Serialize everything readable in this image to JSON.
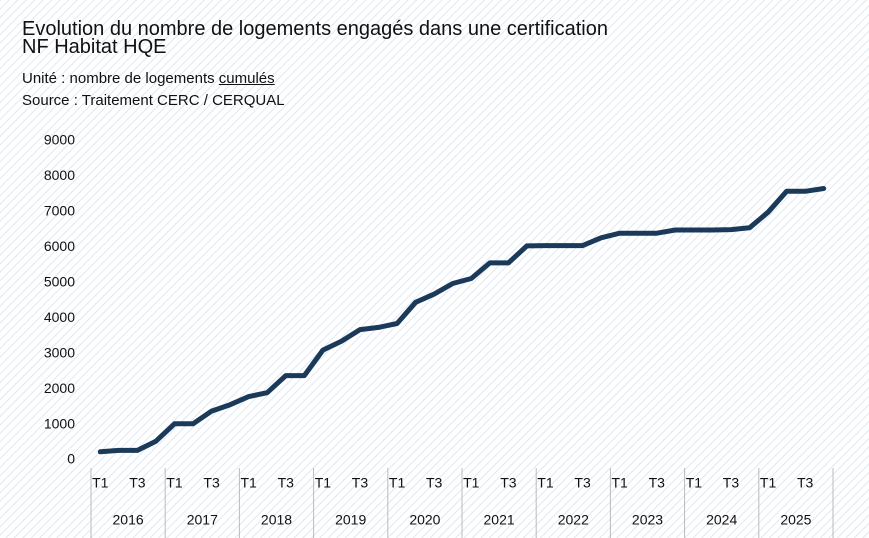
{
  "chart_data": {
    "type": "line",
    "title": "Evolution du nombre de logements engagés dans une certification NF Habitat HQE",
    "subtitle": {
      "text": "Unité : nombre de logements",
      "emphasis": "cumulés"
    },
    "source": "Source : Traitement CERC / CERQUAL",
    "categories": [
      "T1",
      null,
      "T3",
      null,
      "T1",
      null,
      "T3",
      null,
      "T1",
      null,
      "T3",
      null,
      "T1",
      null,
      "T3",
      null,
      "T1",
      null,
      "T3",
      null,
      "T1",
      null,
      "T3",
      null,
      "T1",
      null,
      "T3",
      null,
      "T1",
      null,
      "T3",
      null,
      "T1",
      null,
      "T3",
      null,
      "T1",
      null,
      "T3",
      null
    ],
    "year_groups": [
      "2016",
      "2017",
      "2018",
      "2019",
      "2020",
      "2021",
      "2022",
      "2023",
      "2024",
      "2025"
    ],
    "series": [
      {
        "color": "#1b3a5a",
        "values": [
          230,
          270,
          270,
          530,
          1020,
          1020,
          1380,
          1560,
          1790,
          1900,
          2380,
          2380,
          3100,
          3350,
          3680,
          3740,
          3850,
          4450,
          4680,
          4980,
          5120,
          5560,
          5560,
          6040,
          6050,
          6050,
          6050,
          6270,
          6400,
          6400,
          6400,
          6490,
          6490,
          6490,
          6500,
          6550,
          6990,
          7580,
          7580,
          7660
        ]
      }
    ],
    "ylim": [
      0,
      9000
    ],
    "yticks": [
      0,
      1000,
      2000,
      3000,
      4000,
      5000,
      6000,
      7000,
      8000,
      9000
    ],
    "grid": false
  }
}
